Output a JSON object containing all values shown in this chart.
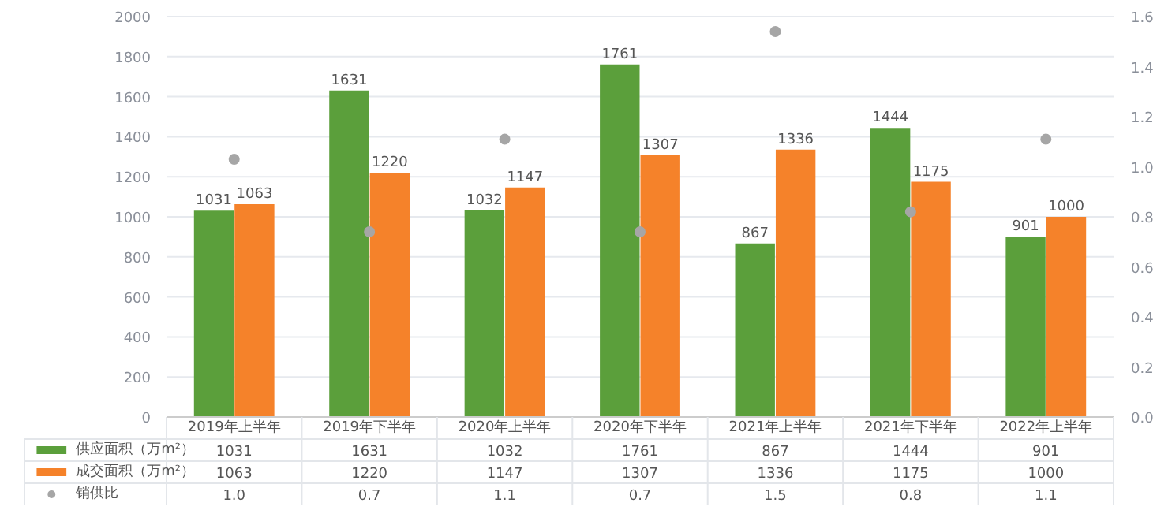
{
  "chart_data": {
    "type": "bar",
    "categories": [
      "2019年上半年",
      "2019年下半年",
      "2020年上半年",
      "2020年下半年",
      "2021年上半年",
      "2021年下半年",
      "2022年上半年"
    ],
    "series": [
      {
        "name": "供应面积（万m²）",
        "color": "#5b9f3b",
        "values": [
          1031,
          1631,
          1032,
          1761,
          867,
          1444,
          901
        ]
      },
      {
        "name": "成交面积（万m²）",
        "color": "#f5822a",
        "values": [
          1063,
          1220,
          1147,
          1307,
          1336,
          1175,
          1000
        ]
      },
      {
        "name": "销供比",
        "type": "scatter",
        "axis": "y2",
        "color": "#a6a6a6",
        "values": [
          1.03,
          0.74,
          1.11,
          0.74,
          1.54,
          0.82,
          1.11
        ],
        "value_labels": [
          "1.0",
          "0.7",
          "1.1",
          "0.7",
          "1.5",
          "0.8",
          "1.1"
        ]
      }
    ],
    "ylim": [
      0,
      2000
    ],
    "yticks": [
      0,
      200,
      400,
      600,
      800,
      1000,
      1200,
      1400,
      1600,
      1800,
      2000
    ],
    "y2lim": [
      0,
      1.6
    ],
    "y2ticks": [
      {
        "value": 0,
        "label": "0.0"
      },
      0.2,
      0.4,
      0.6,
      0.8,
      {
        "value": 1,
        "label": "1.0"
      },
      1.2,
      1.4,
      1.6
    ],
    "annotations": [
      "1031",
      "1631",
      "1032",
      "1761",
      "867",
      "1444",
      "901",
      "1063",
      "1220",
      "1147",
      "1307",
      "1336",
      "1175",
      "1000"
    ],
    "data_labels": true,
    "grid": "y",
    "legend": "bottom",
    "marker": "circle"
  }
}
